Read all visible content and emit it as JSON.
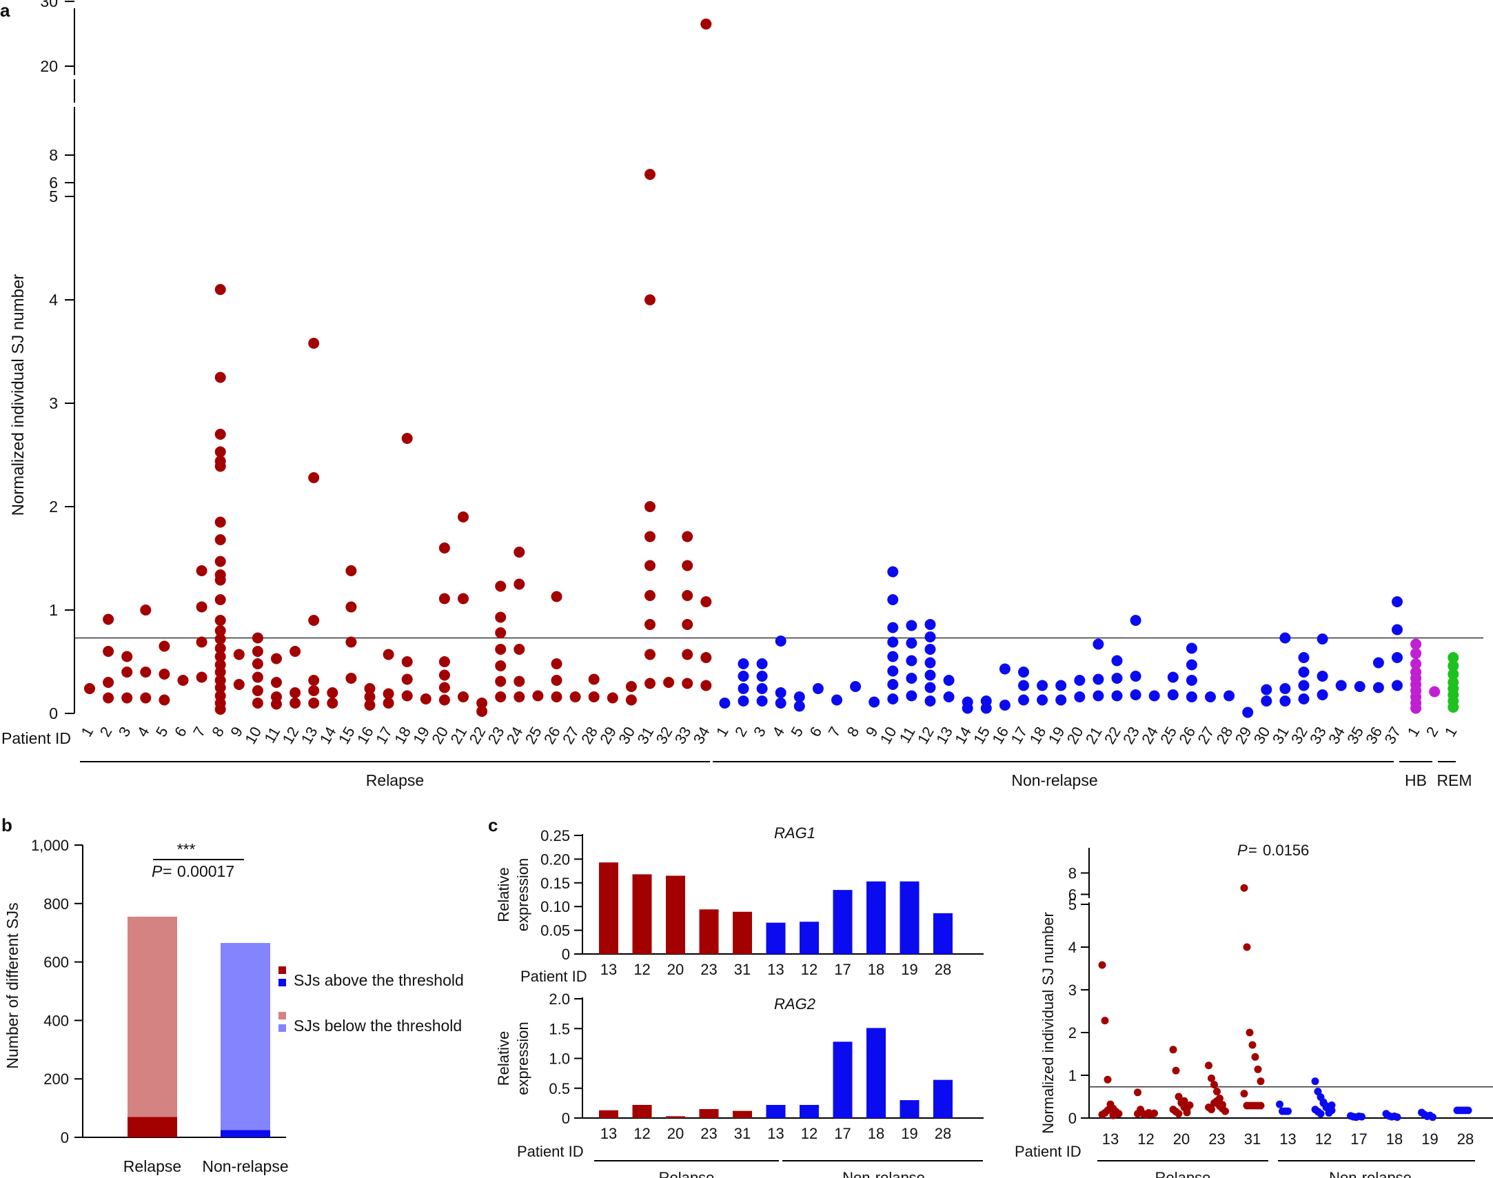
{
  "colors": {
    "relapse": "#a30000",
    "nonrelapse": "#0b0bf0",
    "hb": "#c21fd4",
    "rem": "#1ec21e",
    "relapse_light": "#d48282",
    "nonrelapse_light": "#8484ff",
    "axis": "#000000"
  },
  "panel_labels": {
    "a": "a",
    "b": "b",
    "c": "c"
  },
  "chart_data": [
    {
      "id": "a",
      "type": "scatter",
      "ylabel": "Normalized individual SJ number",
      "xlabel": "Patient ID",
      "threshold": 0.73,
      "ylim_segments": [
        [
          0,
          5
        ],
        [
          5,
          8
        ],
        [
          20,
          30
        ]
      ],
      "yticks": [
        "0",
        "1",
        "2",
        "3",
        "4",
        "5",
        "6",
        "8",
        "20",
        "30"
      ],
      "groups": [
        {
          "name": "Relapse",
          "color": "relapse",
          "patients": [
            {
              "id": "1",
              "values": [
                0.24
              ]
            },
            {
              "id": "2",
              "values": [
                0.91,
                0.6,
                0.3,
                0.15
              ]
            },
            {
              "id": "3",
              "values": [
                0.55,
                0.4,
                0.15
              ]
            },
            {
              "id": "4",
              "values": [
                1.0,
                0.4,
                0.15
              ]
            },
            {
              "id": "5",
              "values": [
                0.65,
                0.38,
                0.13
              ]
            },
            {
              "id": "6",
              "values": [
                0.32
              ]
            },
            {
              "id": "7",
              "values": [
                1.38,
                1.03,
                0.69,
                0.35
              ]
            },
            {
              "id": "8",
              "values": [
                4.1,
                3.25,
                2.7,
                2.53,
                2.44,
                2.39,
                1.85,
                1.68,
                1.47,
                1.34,
                1.29,
                1.1,
                0.9,
                0.8,
                0.72,
                0.63,
                0.55,
                0.47,
                0.4,
                0.32,
                0.25,
                0.17,
                0.1,
                0.04
              ]
            },
            {
              "id": "9",
              "values": [
                0.57,
                0.28
              ]
            },
            {
              "id": "10",
              "values": [
                0.73,
                0.6,
                0.48,
                0.35,
                0.22,
                0.1
              ]
            },
            {
              "id": "11",
              "values": [
                0.53,
                0.3,
                0.16,
                0.09
              ]
            },
            {
              "id": "12",
              "values": [
                0.6,
                0.2,
                0.1
              ]
            },
            {
              "id": "13",
              "values": [
                3.58,
                2.28,
                0.9,
                0.32,
                0.22,
                0.1
              ]
            },
            {
              "id": "14",
              "values": [
                0.2,
                0.1
              ]
            },
            {
              "id": "15",
              "values": [
                1.38,
                1.03,
                0.69,
                0.34
              ]
            },
            {
              "id": "16",
              "values": [
                0.24,
                0.16,
                0.08
              ]
            },
            {
              "id": "17",
              "values": [
                0.57,
                0.19,
                0.1
              ]
            },
            {
              "id": "18",
              "values": [
                2.66,
                0.5,
                0.33,
                0.17
              ]
            },
            {
              "id": "19",
              "values": [
                0.14
              ]
            },
            {
              "id": "20",
              "values": [
                1.6,
                1.11,
                0.5,
                0.37,
                0.25,
                0.13
              ]
            },
            {
              "id": "21",
              "values": [
                1.9,
                1.11,
                0.16
              ]
            },
            {
              "id": "22",
              "values": [
                0.1,
                0.02
              ]
            },
            {
              "id": "23",
              "values": [
                1.23,
                0.93,
                0.78,
                0.62,
                0.46,
                0.31,
                0.16
              ]
            },
            {
              "id": "24",
              "values": [
                1.56,
                1.25,
                0.62,
                0.31,
                0.16
              ]
            },
            {
              "id": "25",
              "values": [
                0.17
              ]
            },
            {
              "id": "26",
              "values": [
                1.13,
                0.48,
                0.32,
                0.16
              ]
            },
            {
              "id": "27",
              "values": [
                0.16
              ]
            },
            {
              "id": "28",
              "values": [
                0.33,
                0.16
              ]
            },
            {
              "id": "29",
              "values": [
                0.15
              ]
            },
            {
              "id": "30",
              "values": [
                0.26,
                0.13
              ]
            },
            {
              "id": "31",
              "values": [
                6.6,
                4.0,
                2.0,
                1.71,
                1.43,
                1.14,
                0.86,
                0.57,
                0.29
              ]
            },
            {
              "id": "32",
              "values": [
                0.3
              ]
            },
            {
              "id": "33",
              "values": [
                1.71,
                1.43,
                1.14,
                0.86,
                0.57,
                0.29
              ]
            },
            {
              "id": "34",
              "values": [
                26.5,
                1.08,
                0.54,
                0.27
              ]
            }
          ]
        },
        {
          "name": "Non-relapse",
          "color": "nonrelapse",
          "patients": [
            {
              "id": "1",
              "values": [
                0.1
              ]
            },
            {
              "id": "2",
              "values": [
                0.48,
                0.36,
                0.24,
                0.12
              ]
            },
            {
              "id": "3",
              "values": [
                0.48,
                0.36,
                0.24,
                0.12
              ]
            },
            {
              "id": "4",
              "values": [
                0.7,
                0.2,
                0.1
              ]
            },
            {
              "id": "5",
              "values": [
                0.16,
                0.07
              ]
            },
            {
              "id": "6",
              "values": [
                0.24
              ]
            },
            {
              "id": "7",
              "values": [
                0.13
              ]
            },
            {
              "id": "8",
              "values": [
                0.26
              ]
            },
            {
              "id": "9",
              "values": [
                0.11
              ]
            },
            {
              "id": "10",
              "values": [
                1.37,
                1.1,
                0.83,
                0.69,
                0.55,
                0.41,
                0.28,
                0.14
              ]
            },
            {
              "id": "11",
              "values": [
                0.85,
                0.68,
                0.51,
                0.34,
                0.17
              ]
            },
            {
              "id": "12",
              "values": [
                0.86,
                0.74,
                0.62,
                0.49,
                0.37,
                0.25,
                0.12
              ]
            },
            {
              "id": "13",
              "values": [
                0.32,
                0.16
              ]
            },
            {
              "id": "14",
              "values": [
                0.11,
                0.05
              ]
            },
            {
              "id": "15",
              "values": [
                0.12,
                0.05
              ]
            },
            {
              "id": "16",
              "values": [
                0.43,
                0.08
              ]
            },
            {
              "id": "17",
              "values": [
                0.4,
                0.27,
                0.13
              ]
            },
            {
              "id": "18",
              "values": [
                0.27,
                0.13
              ]
            },
            {
              "id": "19",
              "values": [
                0.27,
                0.13
              ]
            },
            {
              "id": "20",
              "values": [
                0.32,
                0.16
              ]
            },
            {
              "id": "21",
              "values": [
                0.67,
                0.33,
                0.17
              ]
            },
            {
              "id": "22",
              "values": [
                0.51,
                0.34,
                0.17
              ]
            },
            {
              "id": "23",
              "values": [
                0.9,
                0.36,
                0.18
              ]
            },
            {
              "id": "24",
              "values": [
                0.17
              ]
            },
            {
              "id": "25",
              "values": [
                0.35,
                0.18
              ]
            },
            {
              "id": "26",
              "values": [
                0.63,
                0.47,
                0.32,
                0.16
              ]
            },
            {
              "id": "27",
              "values": [
                0.16
              ]
            },
            {
              "id": "28",
              "values": [
                0.17
              ]
            },
            {
              "id": "29",
              "values": [
                0.01
              ]
            },
            {
              "id": "30",
              "values": [
                0.23,
                0.12
              ]
            },
            {
              "id": "31",
              "values": [
                0.73,
                0.24,
                0.12
              ]
            },
            {
              "id": "32",
              "values": [
                0.54,
                0.4,
                0.27,
                0.14
              ]
            },
            {
              "id": "33",
              "values": [
                0.72,
                0.36,
                0.18
              ]
            },
            {
              "id": "34",
              "values": [
                0.27
              ]
            },
            {
              "id": "35",
              "values": [
                0.26
              ]
            },
            {
              "id": "36",
              "values": [
                0.49,
                0.25
              ]
            },
            {
              "id": "37",
              "values": [
                1.08,
                0.81,
                0.54,
                0.27
              ]
            }
          ]
        },
        {
          "name": "HB",
          "color": "hb",
          "patients": [
            {
              "id": "1",
              "values": [
                0.67,
                0.58,
                0.48,
                0.4,
                0.34,
                0.28,
                0.22,
                0.16,
                0.1,
                0.05
              ]
            },
            {
              "id": "2",
              "values": [
                0.21
              ]
            }
          ]
        },
        {
          "name": "REM",
          "color": "rem",
          "patients": [
            {
              "id": "1",
              "values": [
                0.54,
                0.46,
                0.38,
                0.3,
                0.24,
                0.18,
                0.12,
                0.06
              ]
            }
          ]
        }
      ]
    },
    {
      "id": "b",
      "type": "bar",
      "ylabel": "Number of different SJs",
      "ylim": [
        0,
        1000
      ],
      "yticks": [
        "0",
        "200",
        "400",
        "600",
        "800",
        "1,000"
      ],
      "categories": [
        "Relapse",
        "Non-relapse"
      ],
      "series": [
        {
          "name": "SJs above the threshold",
          "values": [
            70,
            25
          ]
        },
        {
          "name": "SJs below the threshold",
          "values": [
            685,
            640
          ]
        }
      ],
      "significance": "***",
      "pvalue": "0.00017",
      "p_label": "P"
    },
    {
      "id": "c1",
      "type": "bar",
      "title": "RAG1",
      "ylabel": "Relative expression",
      "ylim": [
        0,
        0.25
      ],
      "yticks": [
        "0",
        "0.05",
        "0.10",
        "0.15",
        "0.20",
        "0.25"
      ],
      "xlabel": "Patient ID",
      "categories": [
        "13",
        "12",
        "20",
        "23",
        "31",
        "13",
        "12",
        "17",
        "18",
        "19",
        "28"
      ],
      "groups": [
        "relapse",
        "relapse",
        "relapse",
        "relapse",
        "relapse",
        "nonrelapse",
        "nonrelapse",
        "nonrelapse",
        "nonrelapse",
        "nonrelapse",
        "nonrelapse"
      ],
      "values": [
        0.193,
        0.168,
        0.165,
        0.094,
        0.089,
        0.066,
        0.068,
        0.135,
        0.153,
        0.153,
        0.086
      ]
    },
    {
      "id": "c2",
      "type": "bar",
      "title": "RAG2",
      "ylabel": "Relative expression",
      "ylim": [
        0,
        2.0
      ],
      "yticks": [
        "0",
        "0.5",
        "1.0",
        "1.5",
        "2.0"
      ],
      "xlabel": "Patient ID",
      "categories": [
        "13",
        "12",
        "20",
        "23",
        "31",
        "13",
        "12",
        "17",
        "18",
        "19",
        "28"
      ],
      "groups": [
        "relapse",
        "relapse",
        "relapse",
        "relapse",
        "relapse",
        "nonrelapse",
        "nonrelapse",
        "nonrelapse",
        "nonrelapse",
        "nonrelapse",
        "nonrelapse"
      ],
      "values": [
        0.13,
        0.22,
        0.03,
        0.15,
        0.12,
        0.22,
        0.22,
        1.28,
        1.51,
        0.3,
        0.64
      ],
      "group_labels": [
        "Relapse",
        "Non-relapse"
      ]
    },
    {
      "id": "c3",
      "type": "scatter",
      "ylabel": "Normalized individual SJ number",
      "xlabel": "Patient ID",
      "p_label": "P",
      "pvalue": "0.0156",
      "threshold": 0.73,
      "yticks": [
        "0",
        "1",
        "2",
        "3",
        "4",
        "5",
        "6",
        "8"
      ],
      "group_labels": [
        "Relapse",
        "Non-relapse"
      ],
      "patients": [
        {
          "id": "13",
          "group": "relapse",
          "values": [
            3.58,
            2.28,
            0.9,
            0.32,
            0.22,
            0.15,
            0.1,
            0.08,
            0.12,
            0.18,
            0.25,
            0.06
          ]
        },
        {
          "id": "12",
          "group": "relapse",
          "values": [
            0.6,
            0.2,
            0.1,
            0.08,
            0.12,
            0.09,
            0.11,
            0.1
          ]
        },
        {
          "id": "20",
          "group": "relapse",
          "values": [
            1.6,
            1.11,
            0.5,
            0.37,
            0.25,
            0.13,
            0.3,
            0.2,
            0.15,
            0.1,
            0.35,
            0.4,
            0.22
          ]
        },
        {
          "id": "23",
          "group": "relapse",
          "values": [
            1.23,
            0.93,
            0.78,
            0.62,
            0.46,
            0.31,
            0.16,
            0.25,
            0.2,
            0.35,
            0.4,
            0.28,
            0.22
          ]
        },
        {
          "id": "31",
          "group": "relapse",
          "values": [
            6.6,
            4.0,
            2.0,
            1.71,
            1.43,
            1.14,
            0.86,
            0.57,
            0.29,
            0.29,
            0.29,
            0.29,
            0.29,
            0.29
          ]
        },
        {
          "id": "13",
          "group": "nonrelapse",
          "values": [
            0.32,
            0.16,
            0.16,
            0.16
          ]
        },
        {
          "id": "12",
          "group": "nonrelapse",
          "values": [
            0.86,
            0.62,
            0.49,
            0.37,
            0.25,
            0.12,
            0.3,
            0.2,
            0.15,
            0.1,
            0.35,
            0.28,
            0.22,
            0.18
          ]
        },
        {
          "id": "17",
          "group": "nonrelapse",
          "values": [
            0.05,
            0.03,
            0.02,
            0.04,
            0.03
          ]
        },
        {
          "id": "18",
          "group": "nonrelapse",
          "values": [
            0.1,
            0.05,
            0.03,
            0.04,
            0.02
          ]
        },
        {
          "id": "19",
          "group": "nonrelapse",
          "values": [
            0.13,
            0.08,
            0.04,
            0.06,
            0.02
          ]
        },
        {
          "id": "28",
          "group": "nonrelapse",
          "values": [
            0.18,
            0.18,
            0.18,
            0.18,
            0.18
          ]
        }
      ]
    }
  ]
}
